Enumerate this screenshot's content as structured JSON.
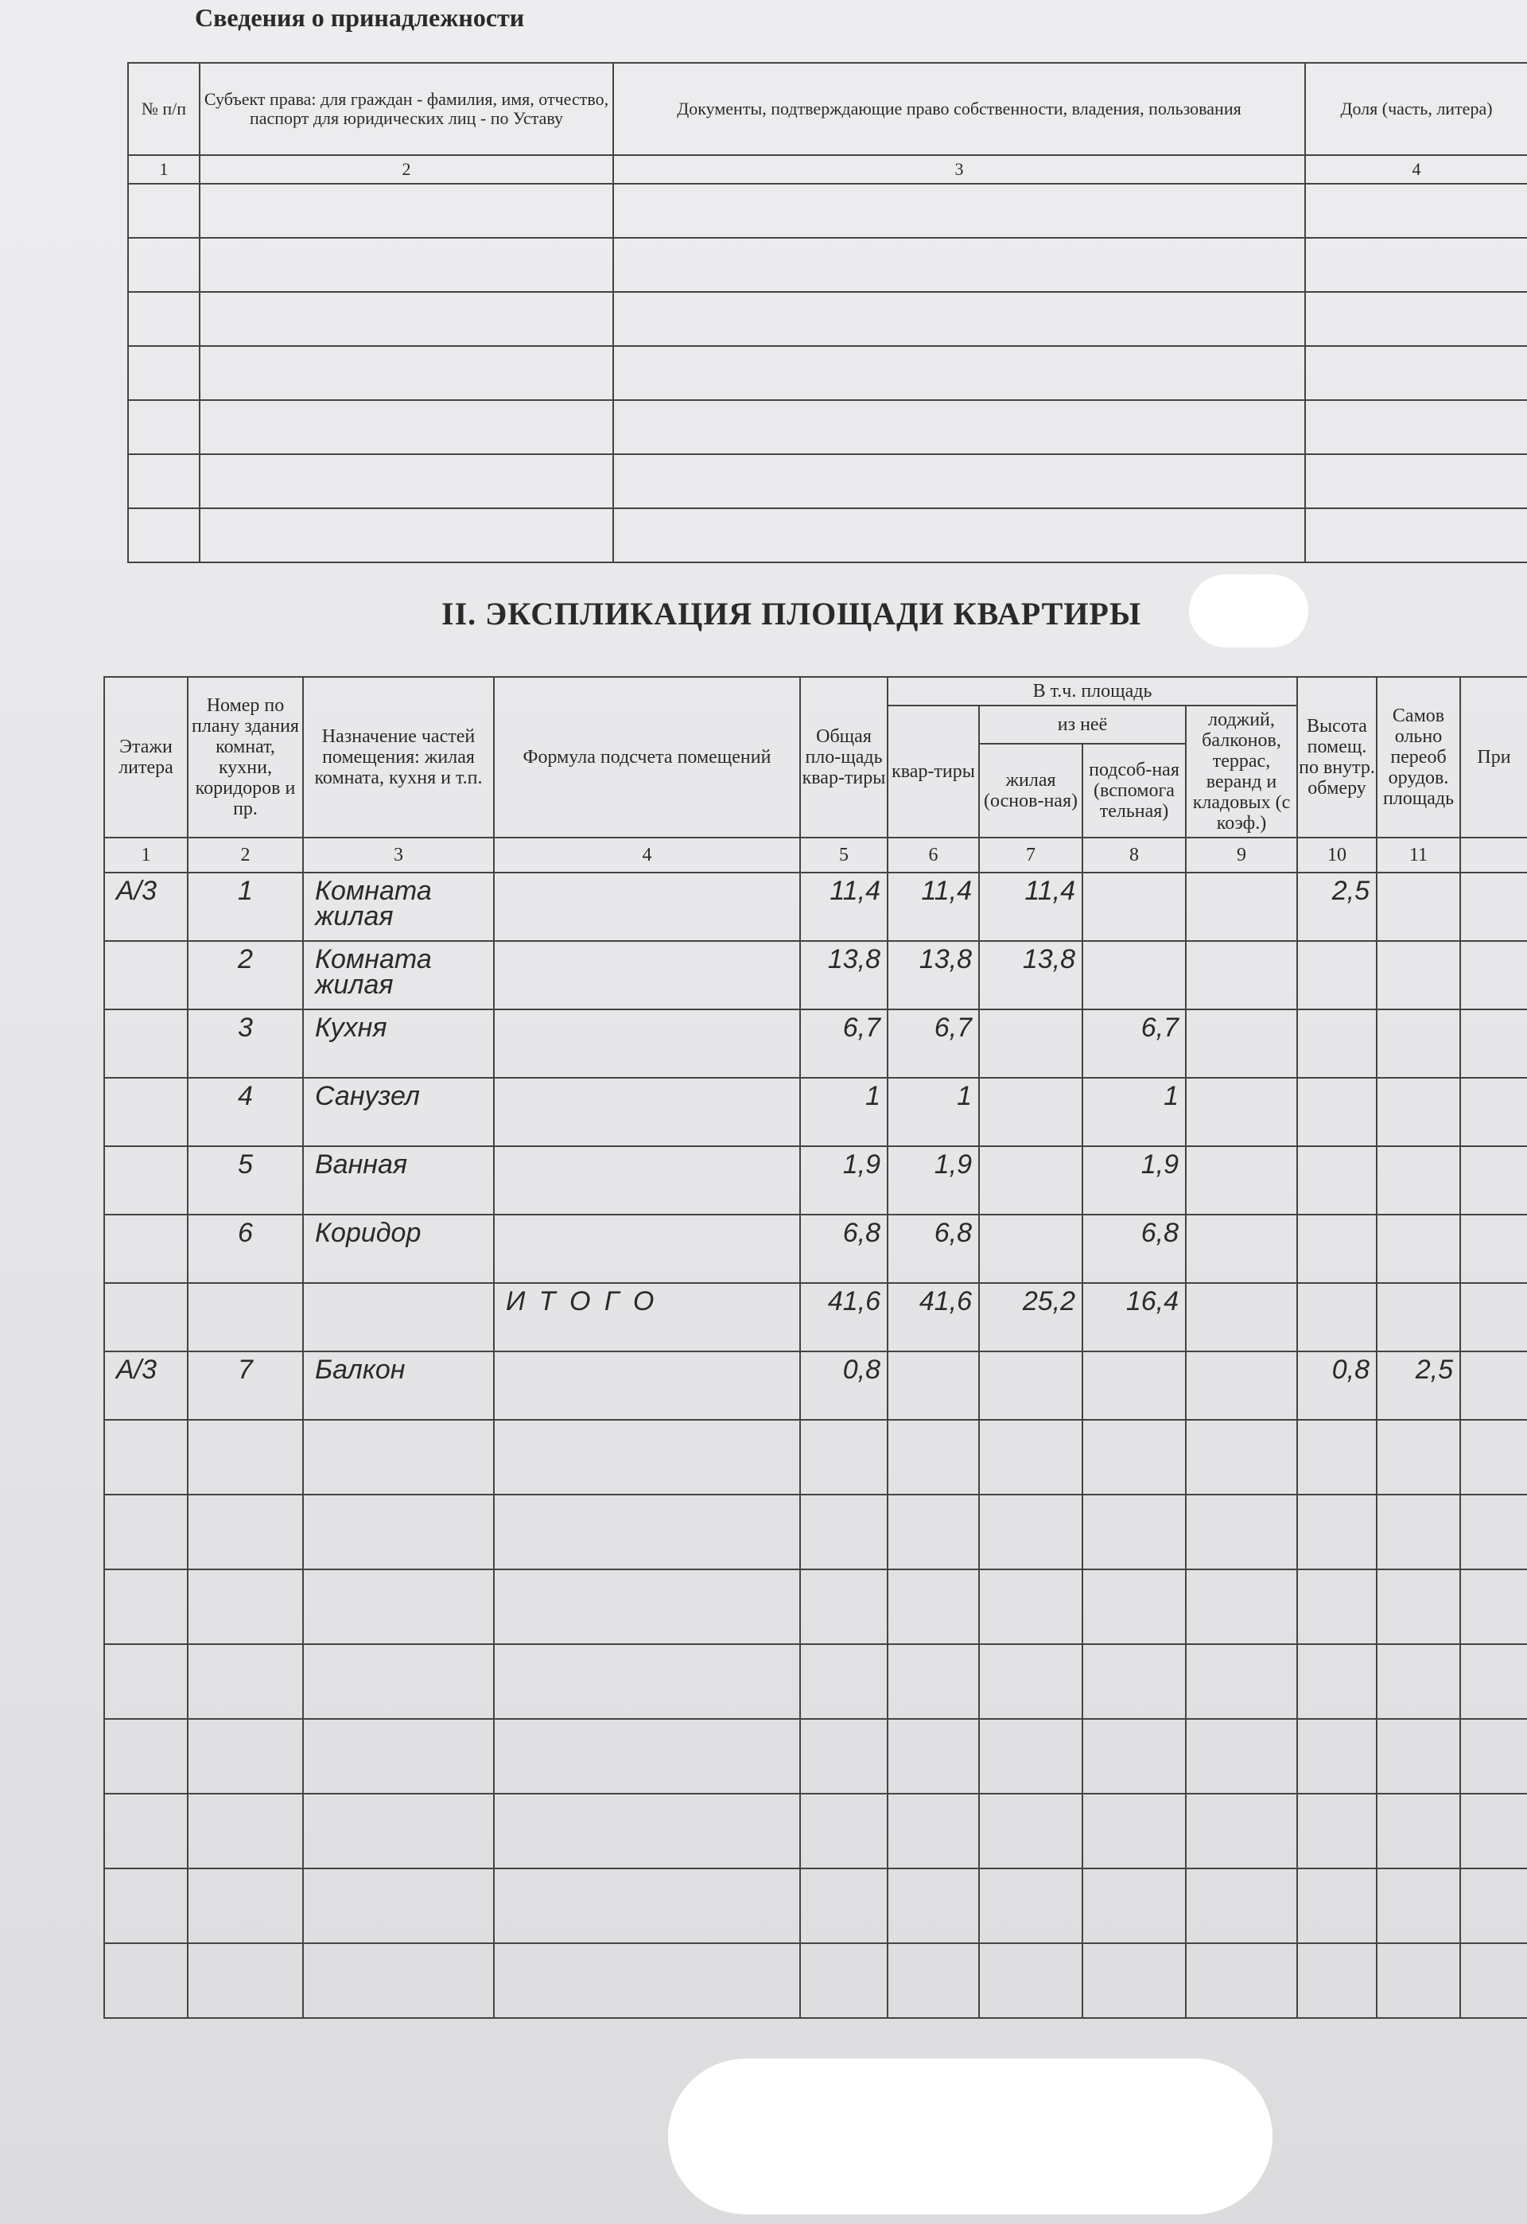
{
  "ownership": {
    "title": "Сведения о принадлежности",
    "headers": [
      "№ п/п",
      "Субъект права: для граждан - фамилия, имя, отчество, паспорт для юридических лиц - по Уставу",
      "Документы, подтверждающие право собственности, владения, пользования",
      "Доля (часть, литера)"
    ],
    "column_numbers": [
      "1",
      "2",
      "3",
      "4"
    ]
  },
  "explication": {
    "title": "II. ЭКСПЛИКАЦИЯ ПЛОЩАДИ КВАРТИРЫ",
    "headers": {
      "floor": "Этажи литера",
      "plan_number": "Номер по плану здания комнат, кухни, коридоров и пр.",
      "purpose": "Назначение частей помещения: жилая комната, кухня и т.п.",
      "formula": "Формула подсчета помещений",
      "total_area": "Общая пло-щадь квар-тиры",
      "incl_area": "В т.ч. площадь",
      "apartment": "квар-тиры",
      "of_which": "из неё",
      "living": "жилая (основ-ная)",
      "auxiliary": "подсоб-ная (вспомога тельная)",
      "loggias": "лоджий, балконов, террас, веранд и кладовых (с коэф.)",
      "height": "Высота помещ. по внутр. обмеру",
      "self_remodeled": "Самов ольно переоб орудов. площадь",
      "note": "При"
    },
    "column_numbers": [
      "1",
      "2",
      "3",
      "4",
      "5",
      "6",
      "7",
      "8",
      "9",
      "10",
      "11"
    ],
    "rows": [
      {
        "floor": "А/3",
        "num": "1",
        "purpose": "Комната жилая",
        "formula": "",
        "total": "11,4",
        "apt": "11,4",
        "living": "11,4",
        "aux": "",
        "loggia": "",
        "height": "2,5",
        "remod": ""
      },
      {
        "floor": "",
        "num": "2",
        "purpose": "Комната жилая",
        "formula": "",
        "total": "13,8",
        "apt": "13,8",
        "living": "13,8",
        "aux": "",
        "loggia": "",
        "height": "",
        "remod": ""
      },
      {
        "floor": "",
        "num": "3",
        "purpose": "Кухня",
        "formula": "",
        "total": "6,7",
        "apt": "6,7",
        "living": "",
        "aux": "6,7",
        "loggia": "",
        "height": "",
        "remod": ""
      },
      {
        "floor": "",
        "num": "4",
        "purpose": "Санузел",
        "formula": "",
        "total": "1",
        "apt": "1",
        "living": "",
        "aux": "1",
        "loggia": "",
        "height": "",
        "remod": ""
      },
      {
        "floor": "",
        "num": "5",
        "purpose": "Ванная",
        "formula": "",
        "total": "1,9",
        "apt": "1,9",
        "living": "",
        "aux": "1,9",
        "loggia": "",
        "height": "",
        "remod": ""
      },
      {
        "floor": "",
        "num": "6",
        "purpose": "Коридор",
        "formula": "",
        "total": "6,8",
        "apt": "6,8",
        "living": "",
        "aux": "6,8",
        "loggia": "",
        "height": "",
        "remod": ""
      },
      {
        "floor": "",
        "num": "",
        "purpose": "",
        "formula": "И Т О Г О",
        "total": "41,6",
        "apt": "41,6",
        "living": "25,2",
        "aux": "16,4",
        "loggia": "",
        "height": "",
        "remod": ""
      },
      {
        "floor": "А/3",
        "num": "7",
        "purpose": "Балкон",
        "formula": "",
        "total": "0,8",
        "apt": "",
        "living": "",
        "aux": "",
        "loggia": "",
        "height": "0,8",
        "remod": "2,5"
      }
    ]
  }
}
